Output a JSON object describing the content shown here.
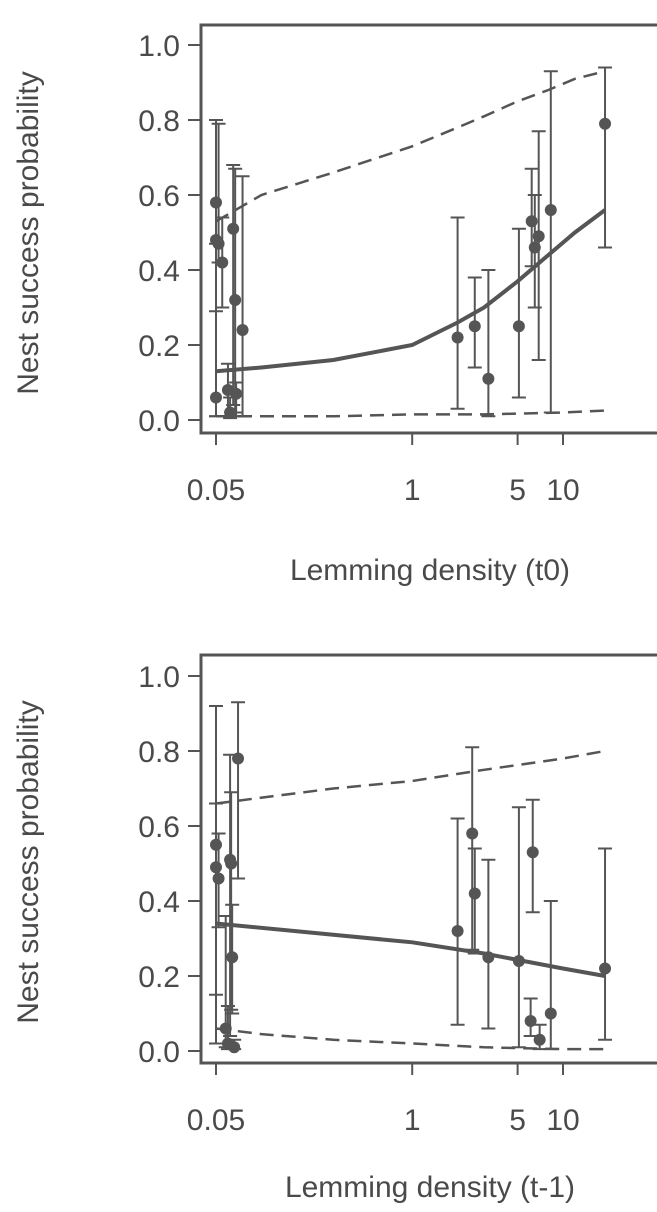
{
  "colors": {
    "ink": "#555555",
    "text": "#4a4a4a",
    "background": "#ffffff"
  },
  "chart_data": [
    {
      "type": "scatter",
      "title": "",
      "xlabel": "Lemming density (t0)",
      "ylabel": "Nest success probability",
      "x_scale": "log",
      "xlim": [
        0.03,
        20
      ],
      "ylim": [
        0.0,
        1.0
      ],
      "x_ticks": [
        0.05,
        1,
        5,
        10
      ],
      "x_tick_labels": [
        "0.05",
        "1",
        "5",
        "10"
      ],
      "y_ticks": [
        0.0,
        0.2,
        0.4,
        0.6,
        0.8,
        1.0
      ],
      "y_tick_labels": [
        "0.0",
        "0.2",
        "0.4",
        "0.6",
        "0.8",
        "1.0"
      ],
      "grid": false,
      "points": [
        {
          "x": 0.05,
          "y": 0.58,
          "lo": 0.29,
          "hi": 0.8
        },
        {
          "x": 0.05,
          "y": 0.48,
          "lo": 0.01,
          "hi": 0.8
        },
        {
          "x": 0.052,
          "y": 0.47,
          "lo": 0.42,
          "hi": 0.79
        },
        {
          "x": 0.05,
          "y": 0.06,
          "lo": 0.01,
          "hi": 0.47
        },
        {
          "x": 0.055,
          "y": 0.42,
          "lo": 0.3,
          "hi": 0.54
        },
        {
          "x": 0.06,
          "y": 0.08,
          "lo": 0.01,
          "hi": 0.15
        },
        {
          "x": 0.062,
          "y": 0.02,
          "lo": 0.005,
          "hi": 0.06
        },
        {
          "x": 0.065,
          "y": 0.51,
          "lo": 0.04,
          "hi": 0.68
        },
        {
          "x": 0.067,
          "y": 0.32,
          "lo": 0.02,
          "hi": 0.67
        },
        {
          "x": 0.068,
          "y": 0.07,
          "lo": 0.01,
          "hi": 0.1
        },
        {
          "x": 0.075,
          "y": 0.24,
          "lo": 0.01,
          "hi": 0.65
        },
        {
          "x": 2.0,
          "y": 0.22,
          "lo": 0.03,
          "hi": 0.54
        },
        {
          "x": 2.6,
          "y": 0.25,
          "lo": 0.14,
          "hi": 0.38
        },
        {
          "x": 3.2,
          "y": 0.11,
          "lo": 0.01,
          "hi": 0.4
        },
        {
          "x": 5.1,
          "y": 0.25,
          "lo": 0.06,
          "hi": 0.51
        },
        {
          "x": 6.2,
          "y": 0.53,
          "lo": 0.41,
          "hi": 0.67
        },
        {
          "x": 6.5,
          "y": 0.46,
          "lo": 0.3,
          "hi": 0.6
        },
        {
          "x": 6.9,
          "y": 0.49,
          "lo": 0.16,
          "hi": 0.77
        },
        {
          "x": 8.3,
          "y": 0.56,
          "lo": 0.02,
          "hi": 0.93
        },
        {
          "x": 19.0,
          "y": 0.79,
          "lo": 0.46,
          "hi": 0.94
        }
      ],
      "fit": {
        "x": [
          0.05,
          0.1,
          0.3,
          1,
          2,
          3,
          5,
          8,
          12,
          19
        ],
        "y": [
          0.13,
          0.14,
          0.16,
          0.2,
          0.26,
          0.3,
          0.37,
          0.44,
          0.5,
          0.56
        ]
      },
      "ci_upper": {
        "x": [
          0.05,
          0.1,
          0.3,
          1,
          2,
          3,
          5,
          8,
          12,
          19
        ],
        "y": [
          0.53,
          0.6,
          0.66,
          0.73,
          0.78,
          0.81,
          0.85,
          0.88,
          0.91,
          0.93
        ]
      },
      "ci_lower": {
        "x": [
          0.05,
          0.1,
          0.3,
          1,
          3,
          10,
          19
        ],
        "y": [
          0.01,
          0.01,
          0.01,
          0.015,
          0.015,
          0.02,
          0.025
        ]
      }
    },
    {
      "type": "scatter",
      "title": "",
      "xlabel": "Lemming density (t-1)",
      "ylabel": "Nest success probability",
      "x_scale": "log",
      "xlim": [
        0.03,
        20
      ],
      "ylim": [
        0.0,
        1.0
      ],
      "x_ticks": [
        0.05,
        1,
        5,
        10
      ],
      "x_tick_labels": [
        "0.05",
        "1",
        "5",
        "10"
      ],
      "y_ticks": [
        0.0,
        0.2,
        0.4,
        0.6,
        0.8,
        1.0
      ],
      "y_tick_labels": [
        "0.0",
        "0.2",
        "0.4",
        "0.6",
        "0.8",
        "1.0"
      ],
      "grid": false,
      "points": [
        {
          "x": 0.05,
          "y": 0.55,
          "lo": 0.15,
          "hi": 0.92
        },
        {
          "x": 0.05,
          "y": 0.49,
          "lo": 0.02,
          "hi": 0.66
        },
        {
          "x": 0.052,
          "y": 0.46,
          "lo": 0.33,
          "hi": 0.58
        },
        {
          "x": 0.058,
          "y": 0.06,
          "lo": 0.01,
          "hi": 0.36
        },
        {
          "x": 0.06,
          "y": 0.02,
          "lo": 0.005,
          "hi": 0.12
        },
        {
          "x": 0.062,
          "y": 0.51,
          "lo": 0.04,
          "hi": 0.79
        },
        {
          "x": 0.063,
          "y": 0.5,
          "lo": 0.11,
          "hi": 0.69
        },
        {
          "x": 0.064,
          "y": 0.25,
          "lo": 0.1,
          "hi": 0.39
        },
        {
          "x": 0.066,
          "y": 0.01,
          "lo": 0.005,
          "hi": 0.03
        },
        {
          "x": 0.07,
          "y": 0.78,
          "lo": 0.46,
          "hi": 0.93
        },
        {
          "x": 2.0,
          "y": 0.32,
          "lo": 0.07,
          "hi": 0.62
        },
        {
          "x": 2.5,
          "y": 0.58,
          "lo": 0.27,
          "hi": 0.81
        },
        {
          "x": 2.6,
          "y": 0.42,
          "lo": 0.26,
          "hi": 0.54
        },
        {
          "x": 3.2,
          "y": 0.25,
          "lo": 0.06,
          "hi": 0.51
        },
        {
          "x": 5.1,
          "y": 0.24,
          "lo": 0.01,
          "hi": 0.65
        },
        {
          "x": 6.1,
          "y": 0.08,
          "lo": 0.04,
          "hi": 0.14
        },
        {
          "x": 6.3,
          "y": 0.53,
          "lo": 0.37,
          "hi": 0.67
        },
        {
          "x": 7.0,
          "y": 0.03,
          "lo": 0.005,
          "hi": 0.07
        },
        {
          "x": 8.3,
          "y": 0.1,
          "lo": 0.005,
          "hi": 0.4
        },
        {
          "x": 19.0,
          "y": 0.22,
          "lo": 0.03,
          "hi": 0.54
        }
      ],
      "fit": {
        "x": [
          0.05,
          0.3,
          1,
          3,
          10,
          19
        ],
        "y": [
          0.34,
          0.31,
          0.29,
          0.26,
          0.22,
          0.2
        ]
      },
      "ci_upper": {
        "x": [
          0.05,
          0.3,
          1,
          3,
          10,
          19
        ],
        "y": [
          0.66,
          0.7,
          0.72,
          0.75,
          0.78,
          0.8
        ]
      },
      "ci_lower": {
        "x": [
          0.05,
          0.1,
          0.3,
          1,
          3,
          10,
          19
        ],
        "y": [
          0.06,
          0.045,
          0.03,
          0.02,
          0.01,
          0.005,
          0.005
        ]
      }
    }
  ]
}
